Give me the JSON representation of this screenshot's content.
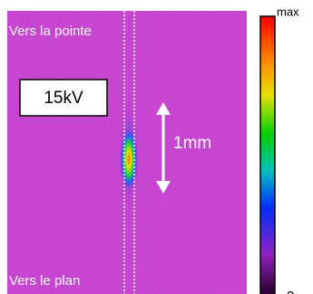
{
  "labels": {
    "top": "Vers la pointe",
    "voltage": "15kV",
    "scale": "1mm",
    "bottom": "Vers le plan"
  },
  "colorbar": {
    "max": "max",
    "min": "0"
  }
}
